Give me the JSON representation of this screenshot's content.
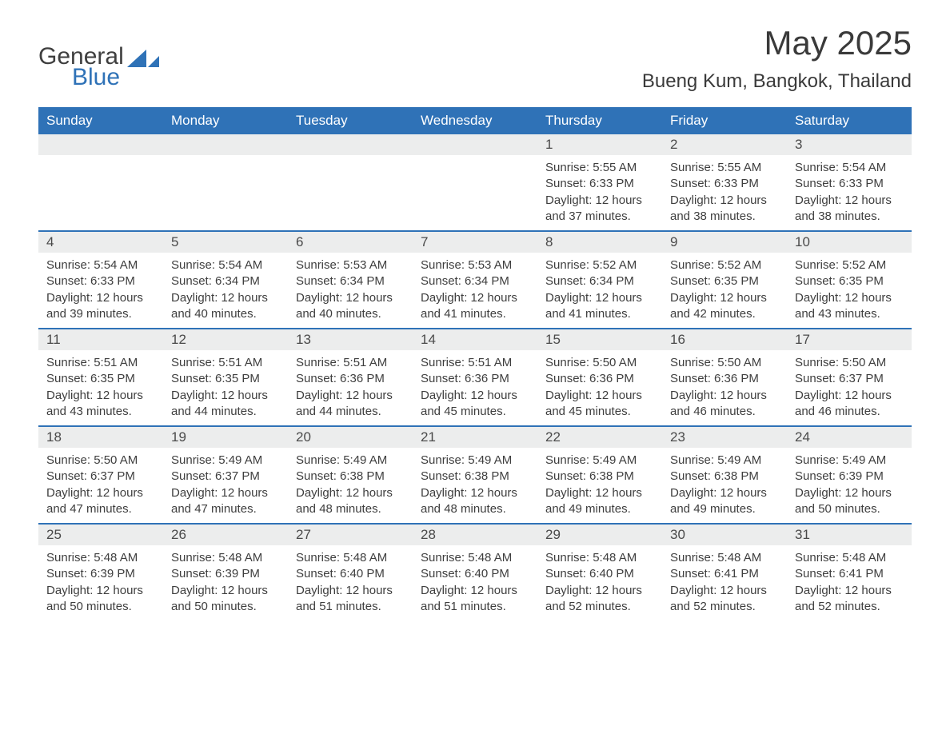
{
  "logo": {
    "word1": "General",
    "word2": "Blue",
    "accent_color": "#2f72b7"
  },
  "title": "May 2025",
  "location": "Bueng Kum, Bangkok, Thailand",
  "colors": {
    "header_bg": "#2f72b7",
    "header_text": "#ffffff",
    "daynum_bg": "#eceded",
    "week_border": "#2f72b7",
    "body_text": "#3a3a3a"
  },
  "day_names": [
    "Sunday",
    "Monday",
    "Tuesday",
    "Wednesday",
    "Thursday",
    "Friday",
    "Saturday"
  ],
  "weeks": [
    [
      null,
      null,
      null,
      null,
      {
        "n": "1",
        "sunrise": "5:55 AM",
        "sunset": "6:33 PM",
        "daylight": "12 hours and 37 minutes."
      },
      {
        "n": "2",
        "sunrise": "5:55 AM",
        "sunset": "6:33 PM",
        "daylight": "12 hours and 38 minutes."
      },
      {
        "n": "3",
        "sunrise": "5:54 AM",
        "sunset": "6:33 PM",
        "daylight": "12 hours and 38 minutes."
      }
    ],
    [
      {
        "n": "4",
        "sunrise": "5:54 AM",
        "sunset": "6:33 PM",
        "daylight": "12 hours and 39 minutes."
      },
      {
        "n": "5",
        "sunrise": "5:54 AM",
        "sunset": "6:34 PM",
        "daylight": "12 hours and 40 minutes."
      },
      {
        "n": "6",
        "sunrise": "5:53 AM",
        "sunset": "6:34 PM",
        "daylight": "12 hours and 40 minutes."
      },
      {
        "n": "7",
        "sunrise": "5:53 AM",
        "sunset": "6:34 PM",
        "daylight": "12 hours and 41 minutes."
      },
      {
        "n": "8",
        "sunrise": "5:52 AM",
        "sunset": "6:34 PM",
        "daylight": "12 hours and 41 minutes."
      },
      {
        "n": "9",
        "sunrise": "5:52 AM",
        "sunset": "6:35 PM",
        "daylight": "12 hours and 42 minutes."
      },
      {
        "n": "10",
        "sunrise": "5:52 AM",
        "sunset": "6:35 PM",
        "daylight": "12 hours and 43 minutes."
      }
    ],
    [
      {
        "n": "11",
        "sunrise": "5:51 AM",
        "sunset": "6:35 PM",
        "daylight": "12 hours and 43 minutes."
      },
      {
        "n": "12",
        "sunrise": "5:51 AM",
        "sunset": "6:35 PM",
        "daylight": "12 hours and 44 minutes."
      },
      {
        "n": "13",
        "sunrise": "5:51 AM",
        "sunset": "6:36 PM",
        "daylight": "12 hours and 44 minutes."
      },
      {
        "n": "14",
        "sunrise": "5:51 AM",
        "sunset": "6:36 PM",
        "daylight": "12 hours and 45 minutes."
      },
      {
        "n": "15",
        "sunrise": "5:50 AM",
        "sunset": "6:36 PM",
        "daylight": "12 hours and 45 minutes."
      },
      {
        "n": "16",
        "sunrise": "5:50 AM",
        "sunset": "6:36 PM",
        "daylight": "12 hours and 46 minutes."
      },
      {
        "n": "17",
        "sunrise": "5:50 AM",
        "sunset": "6:37 PM",
        "daylight": "12 hours and 46 minutes."
      }
    ],
    [
      {
        "n": "18",
        "sunrise": "5:50 AM",
        "sunset": "6:37 PM",
        "daylight": "12 hours and 47 minutes."
      },
      {
        "n": "19",
        "sunrise": "5:49 AM",
        "sunset": "6:37 PM",
        "daylight": "12 hours and 47 minutes."
      },
      {
        "n": "20",
        "sunrise": "5:49 AM",
        "sunset": "6:38 PM",
        "daylight": "12 hours and 48 minutes."
      },
      {
        "n": "21",
        "sunrise": "5:49 AM",
        "sunset": "6:38 PM",
        "daylight": "12 hours and 48 minutes."
      },
      {
        "n": "22",
        "sunrise": "5:49 AM",
        "sunset": "6:38 PM",
        "daylight": "12 hours and 49 minutes."
      },
      {
        "n": "23",
        "sunrise": "5:49 AM",
        "sunset": "6:38 PM",
        "daylight": "12 hours and 49 minutes."
      },
      {
        "n": "24",
        "sunrise": "5:49 AM",
        "sunset": "6:39 PM",
        "daylight": "12 hours and 50 minutes."
      }
    ],
    [
      {
        "n": "25",
        "sunrise": "5:48 AM",
        "sunset": "6:39 PM",
        "daylight": "12 hours and 50 minutes."
      },
      {
        "n": "26",
        "sunrise": "5:48 AM",
        "sunset": "6:39 PM",
        "daylight": "12 hours and 50 minutes."
      },
      {
        "n": "27",
        "sunrise": "5:48 AM",
        "sunset": "6:40 PM",
        "daylight": "12 hours and 51 minutes."
      },
      {
        "n": "28",
        "sunrise": "5:48 AM",
        "sunset": "6:40 PM",
        "daylight": "12 hours and 51 minutes."
      },
      {
        "n": "29",
        "sunrise": "5:48 AM",
        "sunset": "6:40 PM",
        "daylight": "12 hours and 52 minutes."
      },
      {
        "n": "30",
        "sunrise": "5:48 AM",
        "sunset": "6:41 PM",
        "daylight": "12 hours and 52 minutes."
      },
      {
        "n": "31",
        "sunrise": "5:48 AM",
        "sunset": "6:41 PM",
        "daylight": "12 hours and 52 minutes."
      }
    ]
  ],
  "labels": {
    "sunrise": "Sunrise: ",
    "sunset": "Sunset: ",
    "daylight": "Daylight: "
  }
}
